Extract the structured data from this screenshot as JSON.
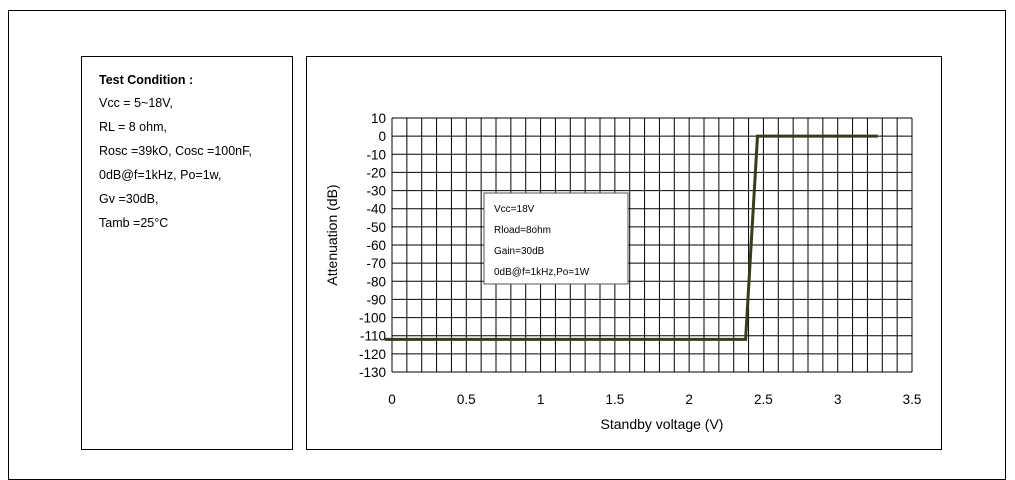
{
  "conditions": {
    "title": "Test Condition :",
    "lines": [
      "Vcc = 5~18V,",
      "RL = 8 ohm,",
      "Rosc =39kO, Cosc =100nF,",
      "0dB@f=1kHz, Po=1w,",
      "Gv =30dB,",
      "Tamb =25°C"
    ]
  },
  "chart_data": {
    "type": "line",
    "title": "",
    "xlabel": "Standby voltage (V)",
    "ylabel": "Attenuation (dB)",
    "xlim": [
      0,
      3.5
    ],
    "ylim": [
      -130,
      10
    ],
    "x_ticks": [
      0,
      0.5,
      1,
      1.5,
      2,
      2.5,
      3,
      3.5
    ],
    "x_tick_labels": [
      "0",
      "0.5",
      "1",
      "1.5",
      "2",
      "2.5",
      "3",
      "3.5"
    ],
    "y_ticks": [
      10,
      0,
      -10,
      -20,
      -30,
      -40,
      -50,
      -60,
      -70,
      -80,
      -90,
      -100,
      -110,
      -120,
      -130
    ],
    "y_tick_labels": [
      "10",
      "0",
      "-10",
      "-20",
      "-30",
      "-40",
      "-50",
      "-60",
      "-70",
      "-80",
      "-90",
      "-100",
      "-110",
      "-120",
      "-130"
    ],
    "grid": true,
    "series": [
      {
        "color": "#3a3a1c",
        "x": [
          -0.05,
          2.38,
          2.46,
          3.27
        ],
        "y": [
          -112,
          -112,
          0,
          0
        ]
      }
    ],
    "legend_box": {
      "lines": [
        "Vcc=18V",
        "Rload=8ohm",
        "Gain=30dB",
        "0dB@f=1kHz,Po=1W"
      ]
    }
  }
}
